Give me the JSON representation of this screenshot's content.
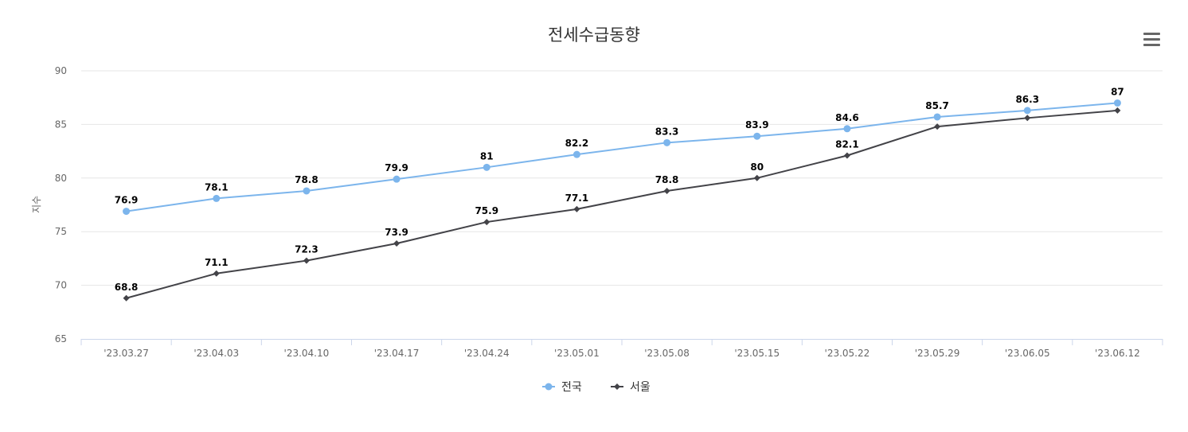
{
  "menu": {
    "icon": "hamburger-menu-icon"
  },
  "legend": {
    "position": "bottom-center"
  },
  "colors": {
    "national": "#7cb5ec",
    "seoul": "#434348",
    "grid": "#e6e6e6"
  },
  "chart_data": {
    "type": "line",
    "title": "전세수급동향",
    "xlabel": "",
    "ylabel": "지수",
    "ylim": [
      65,
      90
    ],
    "yticks": [
      65,
      70,
      75,
      80,
      85,
      90
    ],
    "grid": true,
    "categories": [
      "'23.03.27",
      "'23.04.03",
      "'23.04.10",
      "'23.04.17",
      "'23.04.24",
      "'23.05.01",
      "'23.05.08",
      "'23.05.15",
      "'23.05.22",
      "'23.05.29",
      "'23.06.05",
      "'23.06.12"
    ],
    "series": [
      {
        "name": "전국",
        "marker": "circle",
        "values": [
          76.9,
          78.1,
          78.8,
          79.9,
          81,
          82.2,
          83.3,
          83.9,
          84.6,
          85.7,
          86.3,
          87
        ],
        "labels": [
          "76.9",
          "78.1",
          "78.8",
          "79.9",
          "81",
          "82.2",
          "83.3",
          "83.9",
          "84.6",
          "85.7",
          "86.3",
          "87"
        ]
      },
      {
        "name": "서울",
        "marker": "diamond",
        "values": [
          68.8,
          71.1,
          72.3,
          73.9,
          75.9,
          77.1,
          78.8,
          80,
          82.1,
          84.8,
          85.6,
          86.3
        ],
        "labels": [
          "68.8",
          "71.1",
          "72.3",
          "73.9",
          "75.9",
          "77.1",
          "78.8",
          "80",
          "82.1",
          null,
          null,
          null
        ]
      }
    ]
  }
}
